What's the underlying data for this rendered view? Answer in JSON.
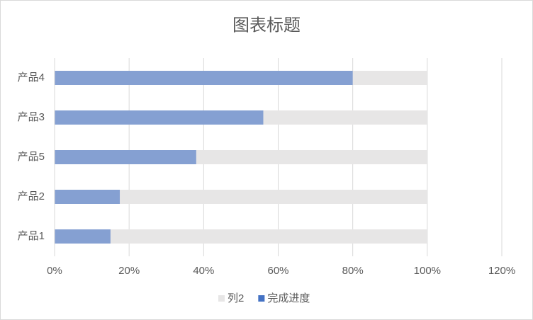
{
  "chart_data": {
    "type": "bar",
    "orientation": "horizontal",
    "title": "图表标题",
    "categories": [
      "产品4",
      "产品3",
      "产品5",
      "产品2",
      "产品1"
    ],
    "series": [
      {
        "name": "列2",
        "color": "#e7e6e6",
        "values": [
          100,
          100,
          100,
          100,
          100
        ]
      },
      {
        "name": "完成进度",
        "color": "#4472c4",
        "values": [
          80,
          56,
          38,
          17.5,
          15
        ]
      }
    ],
    "xlim": [
      0,
      120
    ],
    "xticks": [
      {
        "value": 0,
        "label": "0%"
      },
      {
        "value": 20,
        "label": "20%"
      },
      {
        "value": 40,
        "label": "40%"
      },
      {
        "value": 60,
        "label": "60%"
      },
      {
        "value": 80,
        "label": "80%"
      },
      {
        "value": 100,
        "label": "100%"
      },
      {
        "value": 120,
        "label": "120%"
      }
    ],
    "grid": true,
    "legend": "bottom"
  }
}
